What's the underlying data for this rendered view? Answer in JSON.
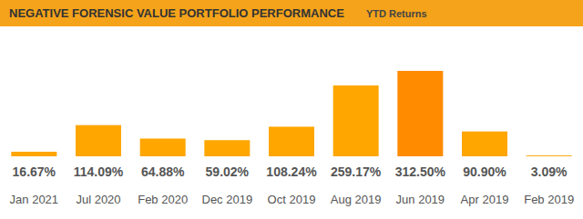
{
  "chart_data": {
    "type": "bar",
    "title": "NEGATIVE FORENSIC VALUE PORTFOLIO PERFORMANCE",
    "subtitle": "YTD Returns",
    "categories": [
      "Jan 2021",
      "Jul 2020",
      "Feb 2020",
      "Dec 2019",
      "Oct 2019",
      "Aug 2019",
      "Jun 2019",
      "Apr 2019",
      "Feb 2019"
    ],
    "values": [
      16.67,
      114.09,
      64.88,
      59.02,
      108.24,
      259.17,
      312.5,
      90.9,
      3.09
    ],
    "value_labels": [
      "16.67%",
      "114.09%",
      "64.88%",
      "59.02%",
      "108.24%",
      "259.17%",
      "312.50%",
      "90.90%",
      "3.09%"
    ],
    "colors": [
      "#ffa600",
      "#ffa600",
      "#ffa600",
      "#ffa600",
      "#ffa600",
      "#ffa600",
      "#ff8c00",
      "#ffa600",
      "#ffa600"
    ],
    "ylim": [
      0,
      312.5
    ],
    "data_labels": true,
    "tick_labels": "x",
    "grid": false
  }
}
